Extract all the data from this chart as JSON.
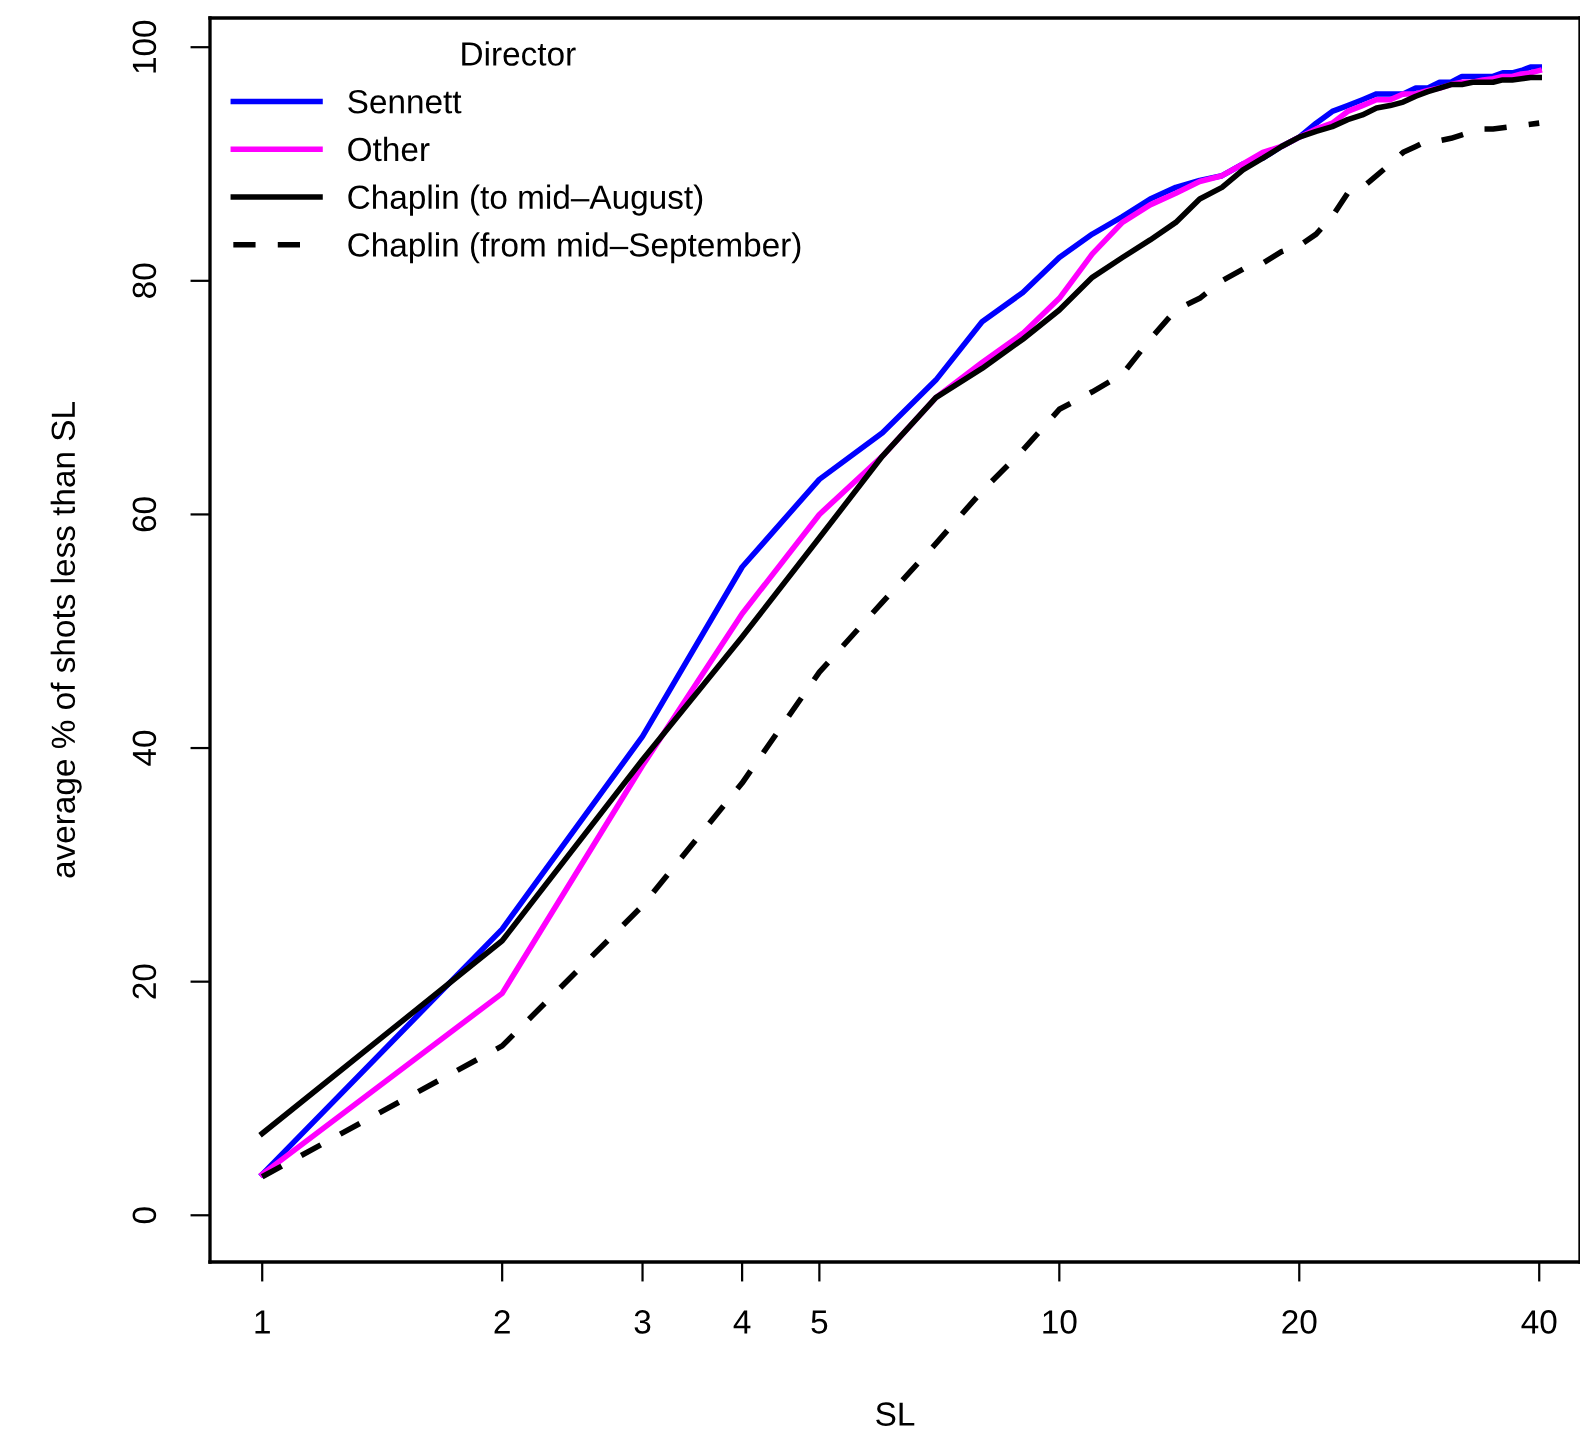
{
  "chart_data": {
    "type": "line",
    "xlabel": "SL",
    "ylabel": "average % of shots less than SL",
    "legend_title": "Director",
    "legend": "top left",
    "grid": false,
    "log": "x",
    "marker": "none",
    "x": [
      1,
      2,
      3,
      4,
      5,
      6,
      7,
      8,
      9,
      10,
      11,
      12,
      13,
      14,
      15,
      16,
      17,
      18,
      19,
      20,
      21,
      22,
      23,
      24,
      25,
      26,
      27,
      28,
      29,
      30,
      31,
      32,
      33,
      34,
      35,
      36,
      37,
      38,
      39,
      40
    ],
    "xlim": [
      0.86,
      45
    ],
    "xticks": [
      1,
      2,
      3,
      4,
      5,
      10,
      20,
      40
    ],
    "ylim": [
      -4,
      102.5
    ],
    "yticks": [
      0,
      20,
      40,
      60,
      80,
      100
    ],
    "series": [
      {
        "name": "Sennett",
        "color": "#0000ff",
        "line_style": "solid",
        "values": [
          3.5,
          24.5,
          41,
          55.5,
          63,
          67,
          71.5,
          76.5,
          79,
          82,
          84,
          85.5,
          87,
          88,
          88.6,
          89,
          90,
          90.5,
          91.5,
          92.3,
          93.5,
          94.5,
          95,
          95.5,
          96,
          96,
          96,
          96.5,
          96.5,
          97,
          97,
          97.5,
          97.5,
          97.5,
          97.5,
          97.8,
          97.8,
          98,
          98.3,
          98.3
        ]
      },
      {
        "name": "Other",
        "color": "#ff00ff",
        "line_style": "solid",
        "values": [
          3.5,
          19,
          38.5,
          51.5,
          60,
          65,
          70,
          73,
          75.5,
          78.5,
          82.3,
          85,
          86.5,
          87.5,
          88.5,
          89,
          90,
          91,
          91.5,
          92.3,
          93,
          93.5,
          94.5,
          95,
          95.5,
          95.5,
          96,
          96,
          96.3,
          96.5,
          96.8,
          97,
          97,
          97.2,
          97.3,
          97.5,
          97.5,
          97.7,
          97.8,
          98
        ]
      },
      {
        "name": "Chaplin (to mid–August)",
        "color": "#000000",
        "line_style": "solid",
        "values": [
          7,
          23.5,
          39,
          49.5,
          58,
          65,
          70,
          72.5,
          75,
          77.5,
          80.3,
          82,
          83.5,
          85,
          87,
          88,
          89.5,
          90.5,
          91.5,
          92.3,
          92.8,
          93.2,
          93.8,
          94.2,
          94.8,
          95,
          95.3,
          95.8,
          96.2,
          96.5,
          96.8,
          96.8,
          97,
          97,
          97,
          97.2,
          97.2,
          97.3,
          97.4,
          97.4
        ]
      },
      {
        "name": "Chaplin (from mid–September)",
        "color": "#000000",
        "line_style": "dashed",
        "values": [
          3.3,
          14.5,
          26.5,
          37,
          46.5,
          52.5,
          57.5,
          62,
          65.5,
          69,
          70.5,
          72,
          75,
          77.5,
          78.5,
          80,
          81,
          81.5,
          82.5,
          83,
          84,
          85.5,
          87.5,
          88,
          89,
          90,
          91,
          91.5,
          92,
          92,
          92.2,
          92.5,
          92.8,
          93,
          93,
          93.1,
          93.2,
          93.3,
          93.4,
          93.5
        ]
      }
    ]
  }
}
